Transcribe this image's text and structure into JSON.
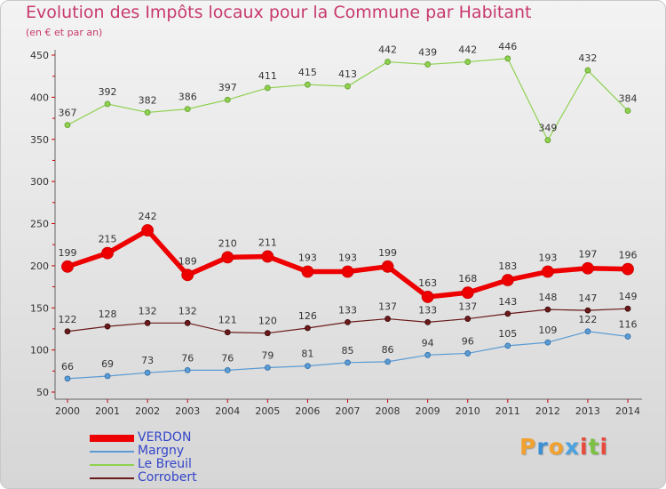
{
  "chart_data": {
    "type": "line",
    "title": "Evolution des Impôts locaux pour la Commune par Habitant",
    "subtitle": "(en € et par an)",
    "x": [
      "2000",
      "2001",
      "2002",
      "2003",
      "2004",
      "2005",
      "2006",
      "2007",
      "2008",
      "2009",
      "2010",
      "2011",
      "2012",
      "2013",
      "2014"
    ],
    "ylim": [
      50,
      450
    ],
    "yticks": [
      50,
      100,
      150,
      200,
      250,
      300,
      350,
      400,
      450
    ],
    "grid": false,
    "legend_position": "bottom-left",
    "series": [
      {
        "name": "VERDON",
        "color": "#ee0000",
        "values": [
          199,
          215,
          242,
          189,
          210,
          211,
          193,
          193,
          199,
          163,
          168,
          183,
          193,
          197,
          196
        ]
      },
      {
        "name": "Margny",
        "color": "#5a9bd4",
        "values": [
          66,
          69,
          73,
          76,
          76,
          79,
          81,
          85,
          86,
          94,
          96,
          105,
          109,
          122,
          116
        ]
      },
      {
        "name": "Le Breuil",
        "color": "#8fd14f",
        "values": [
          367,
          392,
          382,
          386,
          397,
          411,
          415,
          413,
          442,
          439,
          442,
          446,
          349,
          432,
          384
        ]
      },
      {
        "name": "Corrobert",
        "color": "#6b1a1a",
        "values": [
          122,
          128,
          132,
          132,
          121,
          120,
          126,
          133,
          137,
          133,
          137,
          143,
          148,
          147,
          149
        ]
      }
    ]
  },
  "brand": {
    "letters": [
      "P",
      "r",
      "o",
      "x",
      "i",
      "t",
      "i"
    ],
    "colors": [
      "#f2a12e",
      "#3b8fd6",
      "#f2a12e",
      "#4aa3e0",
      "#e84b3c",
      "#7cc242",
      "#e84b3c"
    ]
  }
}
